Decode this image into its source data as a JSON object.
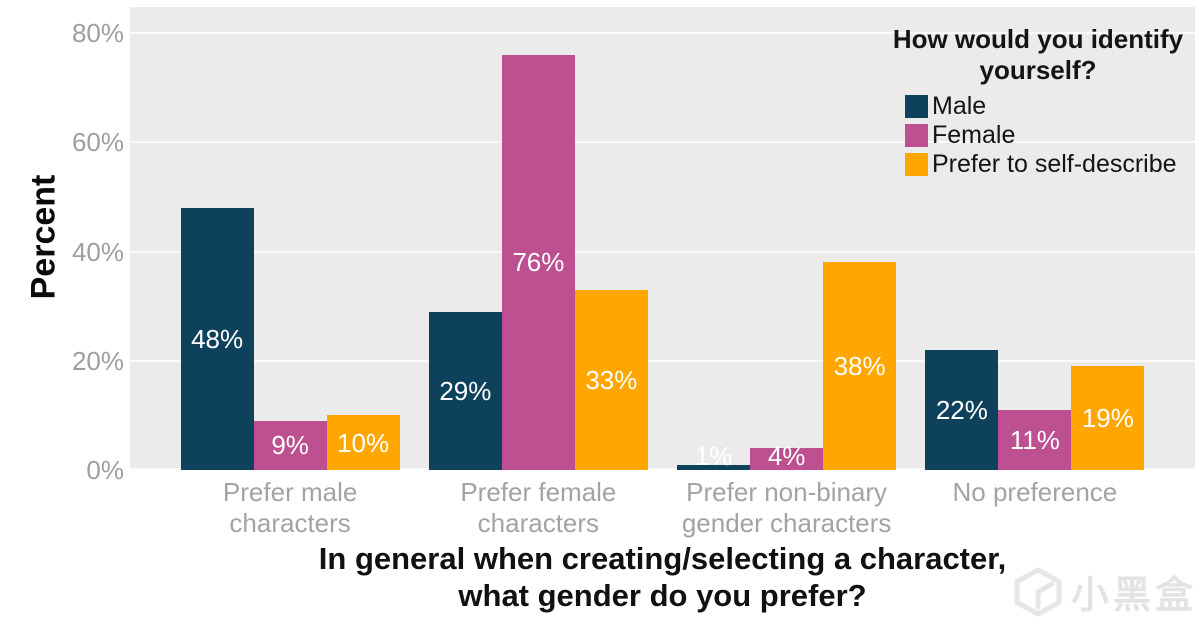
{
  "chart_data": {
    "type": "bar",
    "title": "",
    "ylabel": "Percent",
    "xlabel_lines": [
      "In general when creating/selecting a character,",
      "what gender do you prefer?"
    ],
    "legend_title_lines": [
      "How would you identify",
      "yourself?"
    ],
    "legend_position": "inside-top-right",
    "categories": [
      "Prefer male\ncharacters",
      "Prefer female\ncharacters",
      "Prefer non-binary\ngender characters",
      "No preference"
    ],
    "series": [
      {
        "name": "Male",
        "color": "#0e425c",
        "values": [
          48,
          29,
          1,
          22
        ]
      },
      {
        "name": "Female",
        "color": "#bc5090",
        "values": [
          9,
          76,
          4,
          11
        ]
      },
      {
        "name": "Prefer to self-describe",
        "color": "#ffa600",
        "values": [
          10,
          33,
          38,
          19
        ]
      }
    ],
    "bar_value_labels": [
      [
        "48%",
        "29%",
        "1%",
        "22%"
      ],
      [
        "9%",
        "76%",
        "4%",
        "11%"
      ],
      [
        "10%",
        "33%",
        "38%",
        "19%"
      ]
    ],
    "ytick_values": [
      0,
      20,
      40,
      60,
      80
    ],
    "ytick_labels": [
      "0%",
      "20%",
      "40%",
      "60%",
      "80%"
    ],
    "ylim": [
      0,
      80
    ],
    "y_display_max": 84.76,
    "grid": "horizontal-major-white-on-gray-panel",
    "panel_bg": "#ebebeb",
    "grid_color": "#fafafa",
    "bar_label_color": "#ffffff",
    "axis_text_color": "#9e9e9e",
    "category_text_color": "#a3a3a3"
  },
  "watermark": {
    "brand": "小黑盒",
    "logo": "xiaoheihe-box-logo"
  }
}
